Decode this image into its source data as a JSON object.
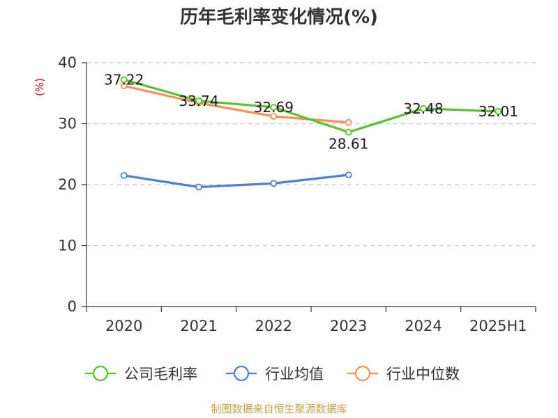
{
  "chart_data": {
    "type": "line",
    "title": "历年毛利率变化情况(%)",
    "ylabel": "(%)",
    "xlabel": "",
    "categories": [
      "2020",
      "2021",
      "2022",
      "2023",
      "2024",
      "2025H1"
    ],
    "ylim": [
      0,
      40
    ],
    "yticks": [
      0,
      10,
      20,
      30,
      40
    ],
    "grid": true,
    "legend_position": "bottom",
    "series": [
      {
        "name": "公司毛利率",
        "color": "#5ac12f",
        "values": [
          37.22,
          33.74,
          32.69,
          28.61,
          32.48,
          32.01
        ],
        "labels": [
          "37.22",
          "33.74",
          "32.69",
          "28.61",
          "32.48",
          "32.01"
        ]
      },
      {
        "name": "行业均值",
        "color": "#4d7fd9",
        "values": [
          21.5,
          19.6,
          20.2,
          21.6,
          null,
          null
        ]
      },
      {
        "name": "行业中位数",
        "color": "#f5915a",
        "values": [
          36.2,
          33.4,
          31.2,
          30.2,
          null,
          null
        ]
      }
    ]
  },
  "footer": {
    "source": "制图数据来自恒生聚源数据库"
  }
}
